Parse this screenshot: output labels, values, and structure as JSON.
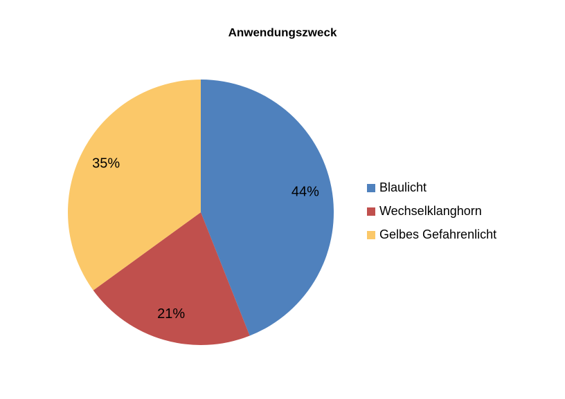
{
  "chart_data": {
    "type": "pie",
    "title": "Anwendungszweck",
    "categories": [
      "Blaulicht",
      "Wechselklanghorn",
      "Gelbes Gefahrenlicht"
    ],
    "values": [
      44,
      21,
      35
    ],
    "value_labels": [
      "44%",
      "21%",
      "35%"
    ],
    "colors": [
      "#4f81bd",
      "#c0504d",
      "#fbc869"
    ],
    "legend": "right"
  }
}
